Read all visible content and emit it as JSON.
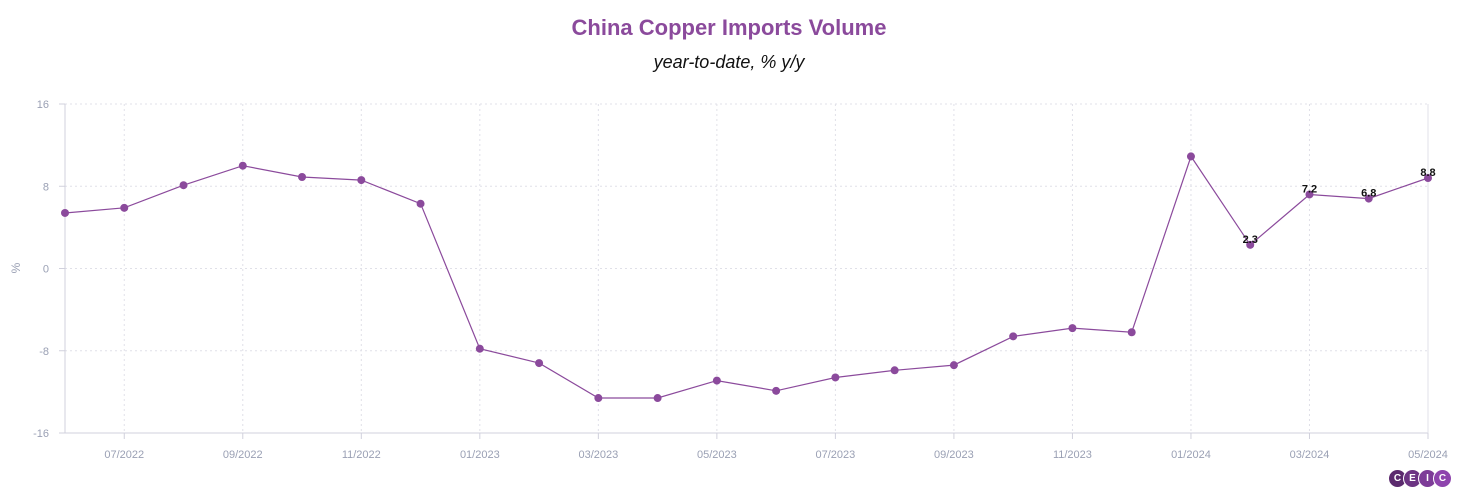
{
  "chart_data": {
    "type": "line",
    "title": "China Copper Imports Volume",
    "subtitle": "year-to-date, % y/y",
    "ylabel": "%",
    "xlabel": "",
    "ylim": [
      -16,
      16
    ],
    "yticks": [
      -16,
      -8,
      0,
      8,
      16
    ],
    "xticks": [
      "07/2022",
      "09/2022",
      "11/2022",
      "01/2023",
      "03/2023",
      "05/2023",
      "07/2023",
      "09/2023",
      "11/2023",
      "01/2024",
      "03/2024",
      "05/2024"
    ],
    "grid": true,
    "series": [
      {
        "color": "#8b4a9c",
        "x": [
          "06/2022",
          "07/2022",
          "08/2022",
          "09/2022",
          "10/2022",
          "11/2022",
          "12/2022",
          "01/2023",
          "02/2023",
          "03/2023",
          "04/2023",
          "05/2023",
          "06/2023",
          "07/2023",
          "08/2023",
          "09/2023",
          "10/2023",
          "11/2023",
          "12/2023",
          "01/2024",
          "02/2024",
          "03/2024",
          "04/2024",
          "05/2024"
        ],
        "values": [
          5.4,
          5.9,
          8.1,
          10.0,
          8.9,
          8.6,
          6.3,
          -7.8,
          -9.2,
          -12.6,
          -12.6,
          -10.9,
          -11.9,
          -10.6,
          -9.9,
          -9.4,
          -6.6,
          -5.8,
          -6.2,
          10.9,
          2.3,
          7.2,
          6.8,
          8.8
        ],
        "data_labels": [
          {
            "x": "02/2024",
            "label": "2.3"
          },
          {
            "x": "03/2024",
            "label": "7.2"
          },
          {
            "x": "04/2024",
            "label": "6.8"
          },
          {
            "x": "05/2024",
            "label": "8.8"
          }
        ]
      }
    ]
  },
  "logo": {
    "letters": [
      "C",
      "E",
      "I",
      "C"
    ],
    "color": "#6c3483"
  }
}
